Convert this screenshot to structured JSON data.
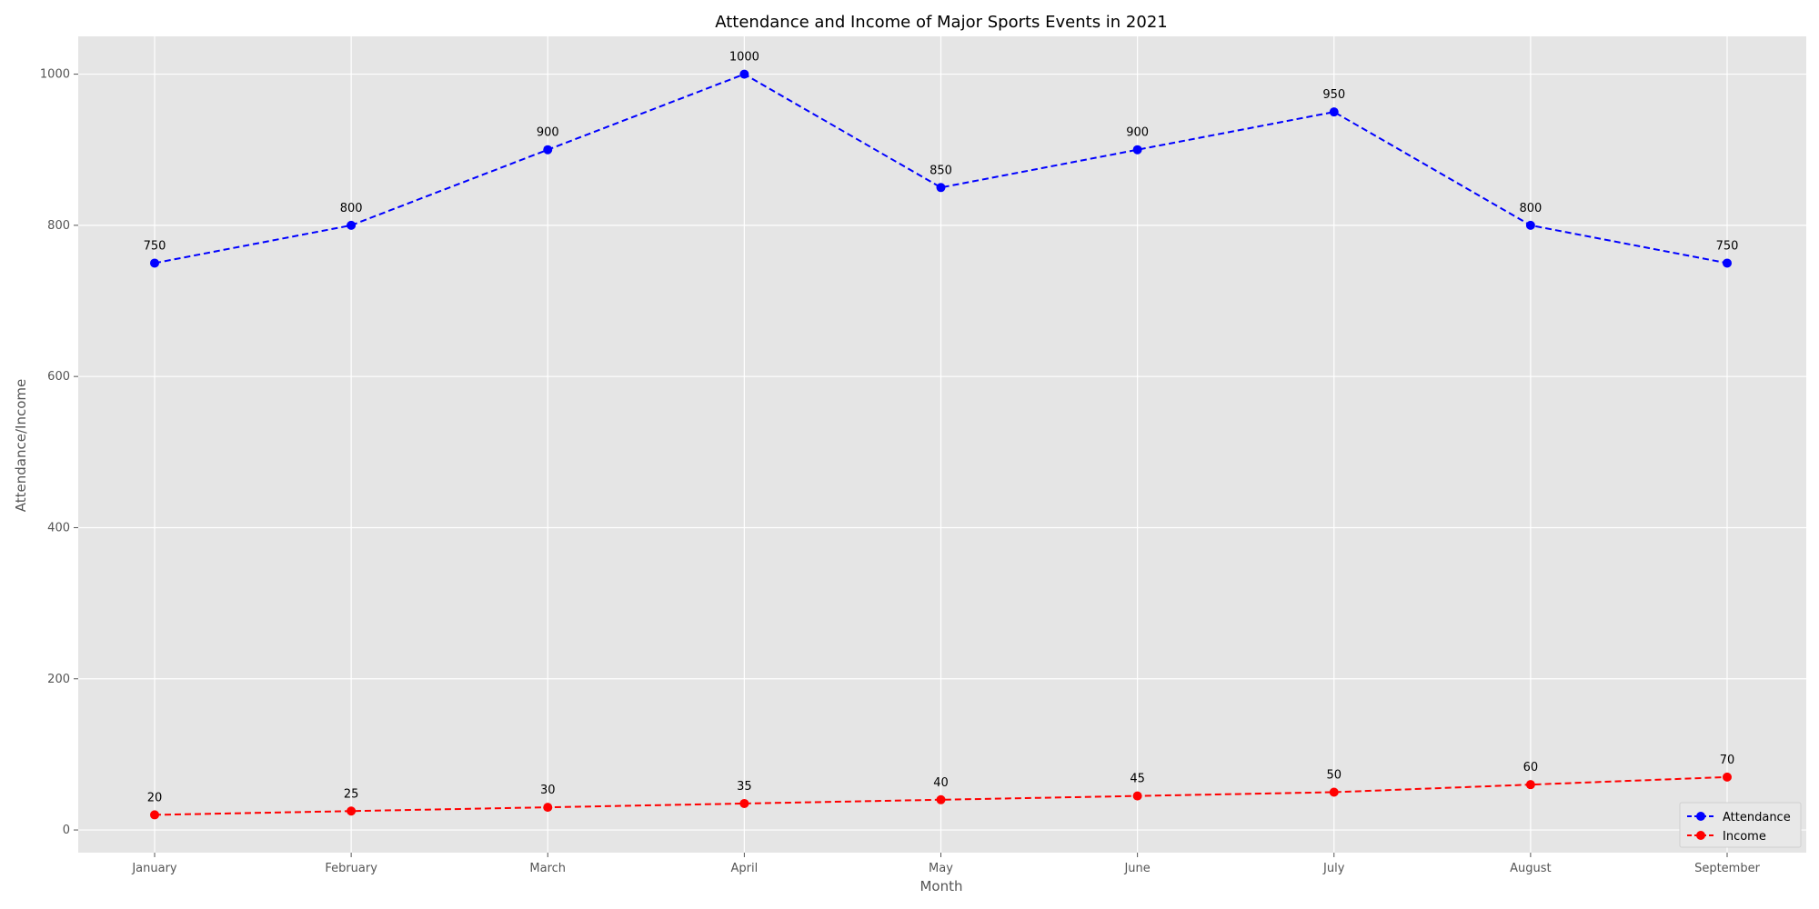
{
  "chart_data": {
    "type": "line",
    "title": "Attendance and Income of Major Sports Events in 2021",
    "xlabel": "Month",
    "ylabel": "Attendance/Income",
    "categories": [
      "January",
      "February",
      "March",
      "April",
      "May",
      "June",
      "July",
      "August",
      "September"
    ],
    "ylim": [
      -30,
      1050
    ],
    "yticks": [
      0,
      200,
      400,
      600,
      800,
      1000
    ],
    "grid": true,
    "legend_position": "bottom-right",
    "series": [
      {
        "name": "Attendance",
        "color": "#0000ff",
        "line_style": "dashed",
        "marker": "circle",
        "values": [
          750,
          800,
          900,
          1000,
          850,
          900,
          950,
          800,
          750
        ]
      },
      {
        "name": "Income",
        "color": "#ff0000",
        "line_style": "dashed",
        "marker": "circle",
        "values": [
          20,
          25,
          30,
          35,
          40,
          45,
          50,
          60,
          70
        ]
      }
    ]
  },
  "style": {
    "plot_background": "#e5e5e5",
    "grid_color": "#ffffff",
    "tick_text_color": "#555555",
    "label_text_color": "#555555",
    "title_color": "#000000"
  }
}
